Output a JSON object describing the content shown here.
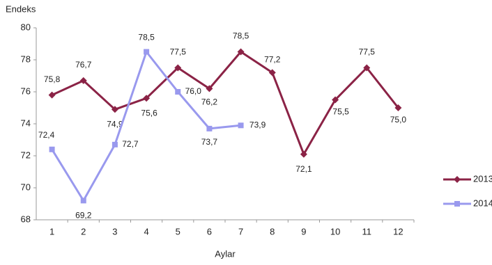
{
  "chart_data": {
    "type": "line",
    "y_label": "Endeks",
    "x_label": "Aylar",
    "categories": [
      "1",
      "2",
      "3",
      "4",
      "5",
      "6",
      "7",
      "8",
      "9",
      "10",
      "11",
      "12"
    ],
    "series": [
      {
        "name": "2013",
        "color": "#8b2346",
        "marker": "diamond",
        "values": [
          75.8,
          76.7,
          74.9,
          75.6,
          77.5,
          76.2,
          78.5,
          77.2,
          72.1,
          75.5,
          77.5,
          75.0
        ],
        "value_labels": [
          "75,8",
          "76,7",
          "74,9",
          "75,6",
          "77,5",
          "76,2",
          "78,5",
          "77,2",
          "72,1",
          "75,5",
          "77,5",
          "75,0"
        ]
      },
      {
        "name": "2014",
        "color": "#9999ee",
        "marker": "square",
        "values": [
          72.4,
          69.2,
          72.7,
          78.5,
          76.0,
          73.7,
          73.9,
          null,
          null,
          null,
          null,
          null
        ],
        "value_labels": [
          "72,4",
          "69,2",
          "72,7",
          "78,5",
          "76,0",
          "73,7",
          "73,9",
          null,
          null,
          null,
          null,
          null
        ]
      }
    ],
    "ylim": [
      68,
      80
    ],
    "yticks": [
      68,
      70,
      72,
      74,
      76,
      78,
      80
    ],
    "grid": false,
    "legend": "right"
  }
}
